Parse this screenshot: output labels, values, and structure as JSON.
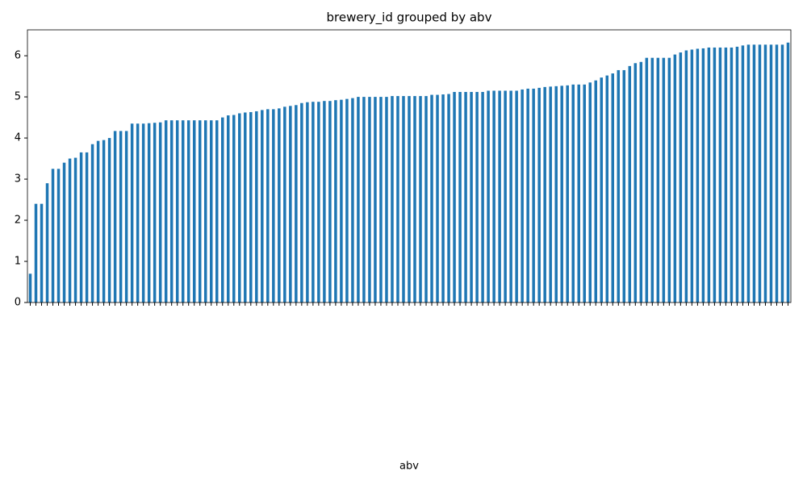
{
  "chart_data": {
    "type": "bar",
    "title": "brewery_id grouped by abv",
    "xlabel": "abv",
    "color": "#1f77b4",
    "categories": [
      null,
      null,
      null,
      null,
      null,
      null,
      null,
      null,
      null,
      null,
      null,
      null,
      null,
      null,
      null,
      null,
      null,
      null,
      null,
      null,
      null,
      null,
      null,
      null,
      null,
      null,
      null,
      null,
      null,
      null,
      null,
      null,
      null,
      null,
      null,
      null,
      null,
      null,
      null,
      null,
      null,
      null,
      null,
      null,
      null,
      null,
      null,
      null,
      null,
      null,
      null,
      null,
      null,
      null,
      null,
      null,
      null,
      null,
      null,
      null,
      null,
      null,
      null,
      null,
      null,
      null,
      null,
      null,
      null,
      null,
      null,
      null,
      null,
      null,
      null,
      null,
      null,
      null,
      null,
      null,
      null,
      null,
      null,
      null,
      null,
      null,
      null,
      null,
      null,
      null,
      null,
      null,
      null,
      null,
      null,
      null,
      null,
      null,
      null,
      null,
      null,
      null,
      null,
      null,
      null,
      null,
      null,
      null,
      null,
      null,
      null,
      null,
      null,
      null,
      null,
      null,
      null,
      null,
      null,
      null,
      null,
      null,
      null,
      null,
      null,
      null,
      null,
      null,
      null,
      null,
      null,
      null,
      null,
      null,
      null
    ],
    "values": [
      0.7,
      2.4,
      2.4,
      2.9,
      3.25,
      3.25,
      3.4,
      3.5,
      3.52,
      3.65,
      3.65,
      3.85,
      3.93,
      3.95,
      4.0,
      4.17,
      4.17,
      4.17,
      4.35,
      4.35,
      4.35,
      4.36,
      4.37,
      4.38,
      4.43,
      4.43,
      4.43,
      4.43,
      4.43,
      4.43,
      4.43,
      4.43,
      4.43,
      4.43,
      4.5,
      4.55,
      4.56,
      4.6,
      4.62,
      4.63,
      4.65,
      4.68,
      4.7,
      4.7,
      4.72,
      4.76,
      4.78,
      4.8,
      4.85,
      4.87,
      4.88,
      4.88,
      4.9,
      4.9,
      4.92,
      4.93,
      4.95,
      4.97,
      5.0,
      5.0,
      5.0,
      5.0,
      5.0,
      5.0,
      5.02,
      5.02,
      5.02,
      5.02,
      5.02,
      5.02,
      5.02,
      5.05,
      5.05,
      5.06,
      5.07,
      5.12,
      5.12,
      5.12,
      5.12,
      5.12,
      5.12,
      5.15,
      5.15,
      5.15,
      5.15,
      5.15,
      5.15,
      5.18,
      5.2,
      5.2,
      5.22,
      5.24,
      5.25,
      5.26,
      5.27,
      5.28,
      5.3,
      5.3,
      5.3,
      5.35,
      5.4,
      5.47,
      5.52,
      5.57,
      5.65,
      5.65,
      5.75,
      5.82,
      5.85,
      5.95,
      5.95,
      5.95,
      5.95,
      5.95,
      6.03,
      6.08,
      6.13,
      6.15,
      6.17,
      6.18,
      6.2,
      6.2,
      6.2,
      6.2,
      6.2,
      6.22,
      6.25,
      6.27,
      6.27,
      6.27,
      6.27,
      6.27,
      6.27,
      6.27,
      6.32
    ],
    "ylim": [
      0,
      6.63
    ],
    "yticks": [
      0,
      1,
      2,
      3,
      4,
      5,
      6
    ]
  }
}
